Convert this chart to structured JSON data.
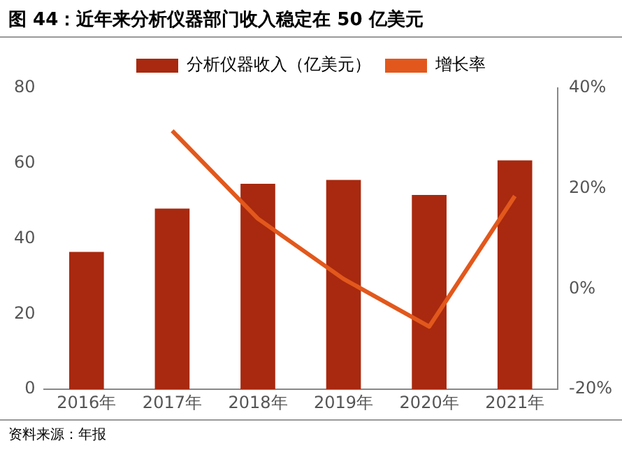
{
  "chart_data": {
    "type": "bar",
    "title": "图 44：近年来分析仪器部门收入稳定在 50 亿美元",
    "categories": [
      "2016年",
      "2017年",
      "2018年",
      "2019年",
      "2020年",
      "2021年"
    ],
    "series": [
      {
        "name": "分析仪器收入（亿美元）",
        "color": "#a8290f",
        "values": [
          36.5,
          48,
          54.6,
          55.6,
          51.6,
          60.8
        ]
      },
      {
        "name": "增长率",
        "type": "line",
        "axis": "y2",
        "color": "#e2581c",
        "values": [
          null,
          31.5,
          14,
          2,
          -7.5,
          18.5
        ]
      }
    ],
    "ylim": [
      0,
      80
    ],
    "yticks": [
      0,
      20,
      40,
      60,
      80
    ],
    "y2lim": [
      -20,
      40
    ],
    "y2ticks": [
      {
        "value": -20,
        "label": "-20%"
      },
      {
        "value": 0,
        "label": "0%"
      },
      {
        "value": 20,
        "label": "20%"
      },
      {
        "value": 40,
        "label": "40%"
      }
    ],
    "legend": "top",
    "grid": false,
    "marker": "none",
    "annotations": [
      "资料来源：年报"
    ]
  }
}
